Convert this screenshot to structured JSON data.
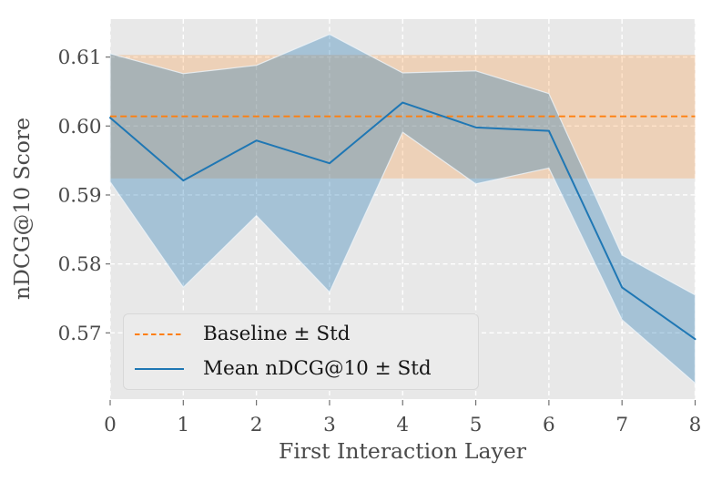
{
  "figure": {
    "kind": "matplotlib-style line chart with std bands",
    "background": "#ffffff",
    "plot_background": "#e8e8e8",
    "grid_color": "#ffffff",
    "tick_text_color": "#4a4a4a",
    "legend_background": "#ebebeb"
  },
  "chart_data": {
    "type": "line",
    "title": "",
    "xlabel": "First Interaction Layer",
    "ylabel": "nDCG@10 Score",
    "xlim": [
      0,
      8
    ],
    "ylim": [
      0.5604,
      0.6155
    ],
    "grid": "white dashed, on",
    "legend_position": "lower left",
    "x": [
      0,
      1,
      2,
      3,
      4,
      5,
      6,
      7,
      8
    ],
    "xtick_labels": [
      "0",
      "1",
      "2",
      "3",
      "4",
      "5",
      "6",
      "7",
      "8"
    ],
    "ytick_values": [
      0.57,
      0.58,
      0.59,
      0.6,
      0.61
    ],
    "ytick_labels": [
      "0.57",
      "0.58",
      "0.59",
      "0.60",
      "0.61"
    ],
    "series": [
      {
        "name": "Mean nDCG@10 ± Std",
        "color": "#1f77b4",
        "line_style": "solid",
        "mean": [
          0.6012,
          0.5921,
          0.5979,
          0.5946,
          0.6034,
          0.5998,
          0.5993,
          0.5766,
          0.5691
        ],
        "band_upper": [
          0.6105,
          0.6076,
          0.6088,
          0.6133,
          0.6077,
          0.608,
          0.6047,
          0.5813,
          0.5755
        ],
        "band_lower": [
          0.5919,
          0.5766,
          0.587,
          0.5759,
          0.5991,
          0.5916,
          0.5939,
          0.5719,
          0.5627
        ]
      },
      {
        "name": "Baseline ± Std",
        "color": "#ff7f0e",
        "line_style": "dashed",
        "baseline": 0.6014,
        "band_upper": 0.6103,
        "band_lower": 0.5924
      }
    ],
    "legend": [
      {
        "label": "Baseline ± Std"
      },
      {
        "label": "Mean nDCG@10 ± Std"
      }
    ]
  }
}
